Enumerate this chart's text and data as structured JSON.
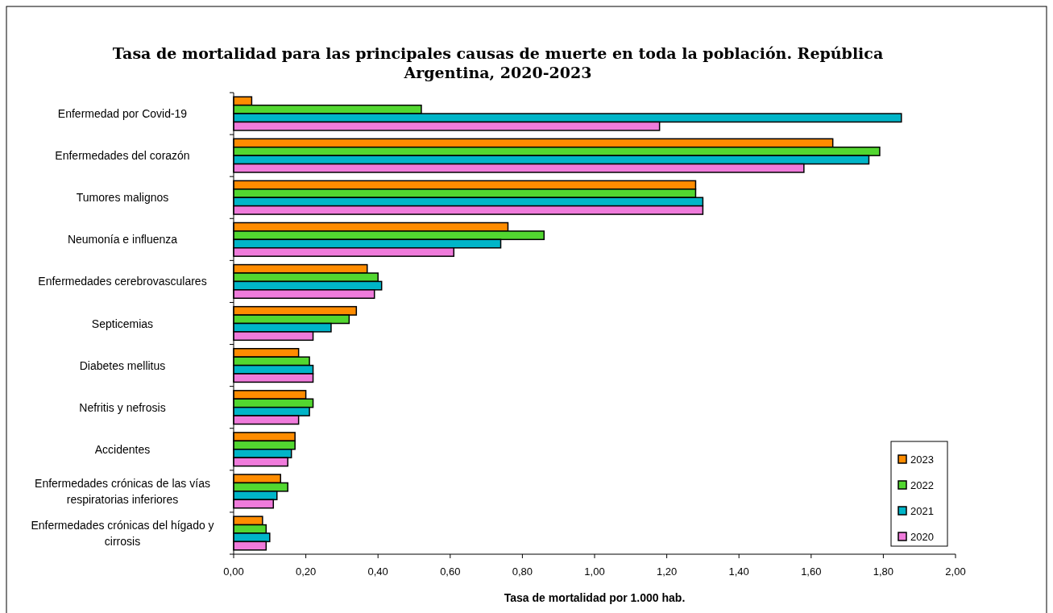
{
  "chart_data": {
    "type": "bar",
    "orientation": "horizontal",
    "title": "Tasa de mortalidad para las principales causas de muerte en toda la población. República Argentina, 2020-2023",
    "xlabel": "Tasa de mortalidad por 1.000 hab.",
    "categories": [
      "Enfermedad por Covid-19",
      "Enfermedades del corazón",
      "Tumores malignos",
      "Neumonía e influenza",
      "Enfermedades cerebrovasculares",
      "Septicemias",
      "Diabetes mellitus",
      "Nefritis y nefrosis",
      "Accidentes",
      "Enfermedades crónicas de las vías respiratorias inferiores",
      "Enfermedades crónicas del hígado y cirrosis"
    ],
    "series": [
      {
        "name": "2023",
        "color": "#ff8c00",
        "values": [
          0.05,
          1.66,
          1.28,
          0.76,
          0.37,
          0.34,
          0.18,
          0.2,
          0.17,
          0.13,
          0.08
        ]
      },
      {
        "name": "2022",
        "color": "#52d730",
        "values": [
          0.52,
          1.79,
          1.28,
          0.86,
          0.4,
          0.32,
          0.21,
          0.22,
          0.17,
          0.15,
          0.09
        ]
      },
      {
        "name": "2021",
        "color": "#00b5c8",
        "values": [
          1.85,
          1.76,
          1.3,
          0.74,
          0.41,
          0.27,
          0.22,
          0.21,
          0.16,
          0.12,
          0.1
        ]
      },
      {
        "name": "2020",
        "color": "#ef7bdb",
        "values": [
          1.18,
          1.58,
          1.3,
          0.61,
          0.39,
          0.22,
          0.22,
          0.18,
          0.15,
          0.11,
          0.09
        ]
      }
    ],
    "xlim": [
      0,
      2
    ],
    "xticks": [
      {
        "value": 0,
        "label": "0,00"
      },
      {
        "value": 0.2,
        "label": "0,20"
      },
      {
        "value": 0.4,
        "label": "0,40"
      },
      {
        "value": 0.6,
        "label": "0,60"
      },
      {
        "value": 0.8,
        "label": "0,80"
      },
      {
        "value": 1,
        "label": "1,00"
      },
      {
        "value": 1.2,
        "label": "1,20"
      },
      {
        "value": 1.4,
        "label": "1,40"
      },
      {
        "value": 1.6,
        "label": "1,60"
      },
      {
        "value": 1.8,
        "label": "1,80"
      },
      {
        "value": 2,
        "label": "2,00"
      }
    ],
    "grid": false,
    "legend": "bottom right"
  }
}
